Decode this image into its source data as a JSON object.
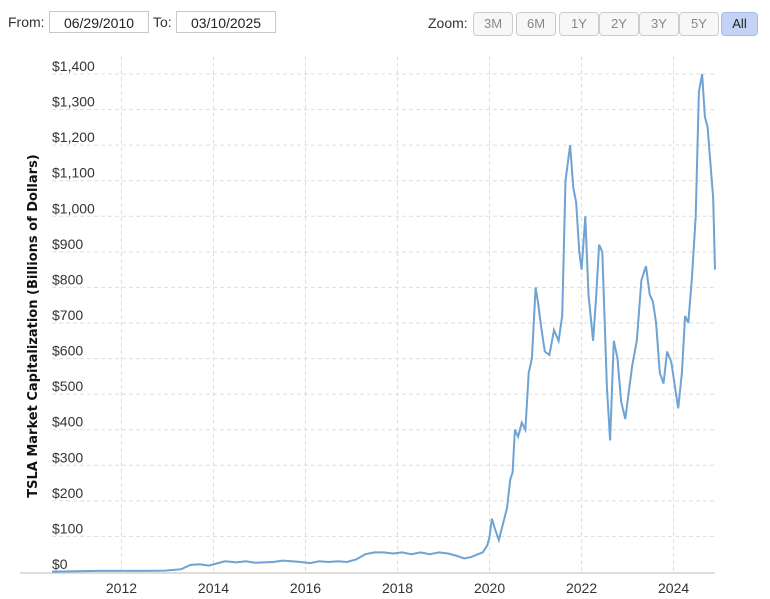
{
  "toolbar": {
    "from_label": "From:",
    "from_value": "06/29/2010",
    "to_label": "To:",
    "to_value": "03/10/2025",
    "zoom_label": "Zoom:",
    "zoom_buttons": [
      "3M",
      "6M",
      "1Y",
      "2Y",
      "3Y",
      "5Y",
      "All"
    ],
    "active_zoom": "All"
  },
  "colors": {
    "line": "#6ea3d3",
    "grid": "#dddddd",
    "active_button": "#c4d3f5"
  },
  "chart_data": {
    "type": "line",
    "title": "",
    "xlabel": "",
    "ylabel": "TSLA Market Capitalization (Billions of Dollars)",
    "xlim": [
      2010.49,
      2024.9
    ],
    "ylim": [
      0,
      1400
    ],
    "y_ticks": [
      0,
      100,
      200,
      300,
      400,
      500,
      600,
      700,
      800,
      900,
      1000,
      1100,
      1200,
      1300,
      1400
    ],
    "y_tick_labels": [
      "$0",
      "$100",
      "$200",
      "$300",
      "$400",
      "$500",
      "$600",
      "$700",
      "$800",
      "$900",
      "$1,000",
      "$1,100",
      "$1,200",
      "$1,300",
      "$1,400"
    ],
    "x_ticks": [
      2012,
      2014,
      2016,
      2018,
      2020,
      2022,
      2024
    ],
    "x_tick_labels": [
      "2012",
      "2014",
      "2016",
      "2018",
      "2020",
      "2022",
      "2024"
    ],
    "grid": true,
    "series": [
      {
        "x": [
          2010.49,
          2011.0,
          2011.5,
          2012.0,
          2012.5,
          2012.95,
          2013.3,
          2013.5,
          2013.7,
          2013.9,
          2014.1,
          2014.25,
          2014.5,
          2014.7,
          2014.9,
          2015.1,
          2015.3,
          2015.5,
          2015.7,
          2015.9,
          2016.1,
          2016.3,
          2016.5,
          2016.7,
          2016.9,
          2017.1,
          2017.3,
          2017.5,
          2017.7,
          2017.9,
          2018.1,
          2018.3,
          2018.5,
          2018.7,
          2018.9,
          2019.1,
          2019.3,
          2019.45,
          2019.6,
          2019.75,
          2019.85,
          2019.95,
          2020.0,
          2020.05,
          2020.12,
          2020.2,
          2020.3,
          2020.38,
          2020.45,
          2020.5,
          2020.55,
          2020.62,
          2020.7,
          2020.78,
          2020.85,
          2020.92,
          2021.0,
          2021.05,
          2021.12,
          2021.2,
          2021.3,
          2021.4,
          2021.5,
          2021.58,
          2021.65,
          2021.75,
          2021.82,
          2021.88,
          2021.95,
          2022.0,
          2022.08,
          2022.15,
          2022.25,
          2022.32,
          2022.38,
          2022.45,
          2022.55,
          2022.62,
          2022.7,
          2022.78,
          2022.86,
          2022.95,
          2023.02,
          2023.1,
          2023.2,
          2023.3,
          2023.4,
          2023.48,
          2023.55,
          2023.62,
          2023.7,
          2023.78,
          2023.86,
          2023.95,
          2024.03,
          2024.1,
          2024.18,
          2024.25,
          2024.32,
          2024.4,
          2024.48,
          2024.55,
          2024.62,
          2024.68,
          2024.74,
          2024.8,
          2024.86,
          2024.9
        ],
        "y": [
          1,
          2,
          3,
          3,
          3,
          4,
          8,
          20,
          22,
          18,
          25,
          30,
          27,
          30,
          26,
          27,
          28,
          32,
          30,
          28,
          25,
          30,
          28,
          30,
          28,
          35,
          50,
          55,
          55,
          52,
          55,
          50,
          55,
          50,
          55,
          52,
          45,
          38,
          42,
          50,
          55,
          75,
          100,
          150,
          120,
          90,
          140,
          180,
          260,
          280,
          400,
          380,
          420,
          400,
          560,
          600,
          800,
          760,
          690,
          620,
          610,
          680,
          650,
          720,
          1100,
          1200,
          1080,
          1040,
          900,
          850,
          1000,
          780,
          650,
          780,
          920,
          900,
          520,
          370,
          650,
          600,
          480,
          430,
          500,
          580,
          650,
          820,
          860,
          780,
          760,
          700,
          560,
          530,
          620,
          590,
          520,
          460,
          560,
          720,
          700,
          830,
          1000,
          1350,
          1400,
          1280,
          1250,
          1150,
          1050,
          850
        ]
      }
    ]
  }
}
